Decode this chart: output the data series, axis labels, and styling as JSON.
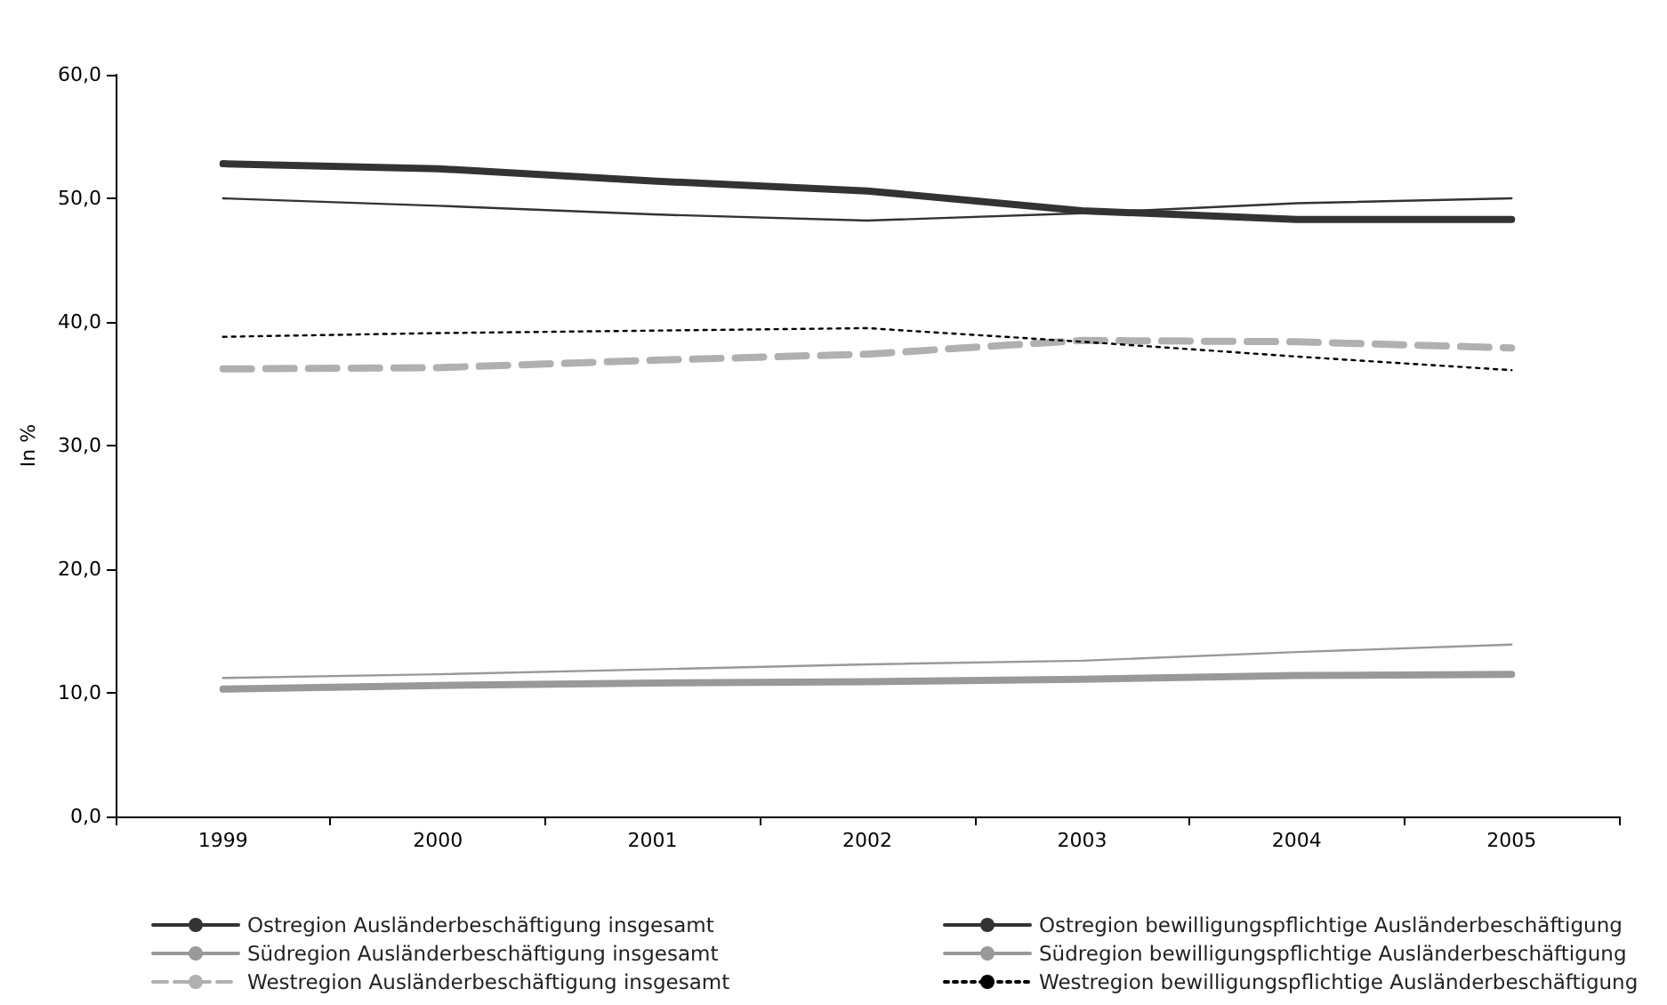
{
  "chart_data": {
    "type": "line",
    "ylabel": "In %",
    "categories": [
      "1999",
      "2000",
      "2001",
      "2002",
      "2003",
      "2004",
      "2005"
    ],
    "ylim": [
      0,
      60
    ],
    "yticks": [
      {
        "value": 0,
        "label": "0,0"
      },
      {
        "value": 10,
        "label": "10,0"
      },
      {
        "value": 20,
        "label": "20,0"
      },
      {
        "value": 30,
        "label": "30,0"
      },
      {
        "value": 40,
        "label": "40,0"
      },
      {
        "value": 50,
        "label": "50,0"
      },
      {
        "value": 60,
        "label": "60,0"
      }
    ],
    "grid": false,
    "legend": "bottom",
    "marker": "none",
    "series": [
      {
        "name": "Ostregion Ausländerbeschäftigung insgesamt",
        "color": "#333333",
        "line_style": "solid",
        "values": [
          52.8,
          52.4,
          51.4,
          50.6,
          49.0,
          48.3,
          48.3
        ]
      },
      {
        "name": "Ostregion bewilligungspflichtige Ausländerbeschäftigung",
        "color": "#333333",
        "line_style": "solid",
        "values": [
          50.0,
          49.4,
          48.7,
          48.2,
          48.8,
          49.6,
          50.0
        ]
      },
      {
        "name": "Südregion Ausländerbeschäftigung insgesamt",
        "color": "#999999",
        "line_style": "solid",
        "values": [
          10.3,
          10.6,
          10.8,
          10.9,
          11.1,
          11.4,
          11.5
        ]
      },
      {
        "name": "Südregion bewilligungspflichtige Ausländerbeschäftigung",
        "color": "#999999",
        "line_style": "solid",
        "values": [
          11.2,
          11.5,
          11.9,
          12.3,
          12.6,
          13.3,
          13.9
        ]
      },
      {
        "name": "Westregion Ausländerbeschäftigung insgesamt",
        "color": "#b0b0b0",
        "line_style": "dashed",
        "values": [
          36.2,
          36.3,
          36.9,
          37.4,
          38.5,
          38.4,
          37.9
        ]
      },
      {
        "name": "Westregion bewilligungspflichtige Ausländerbeschäftigung",
        "color": "#000000",
        "line_style": "dotted",
        "values": [
          38.8,
          39.1,
          39.3,
          39.5,
          38.4,
          37.2,
          36.1
        ]
      }
    ]
  }
}
